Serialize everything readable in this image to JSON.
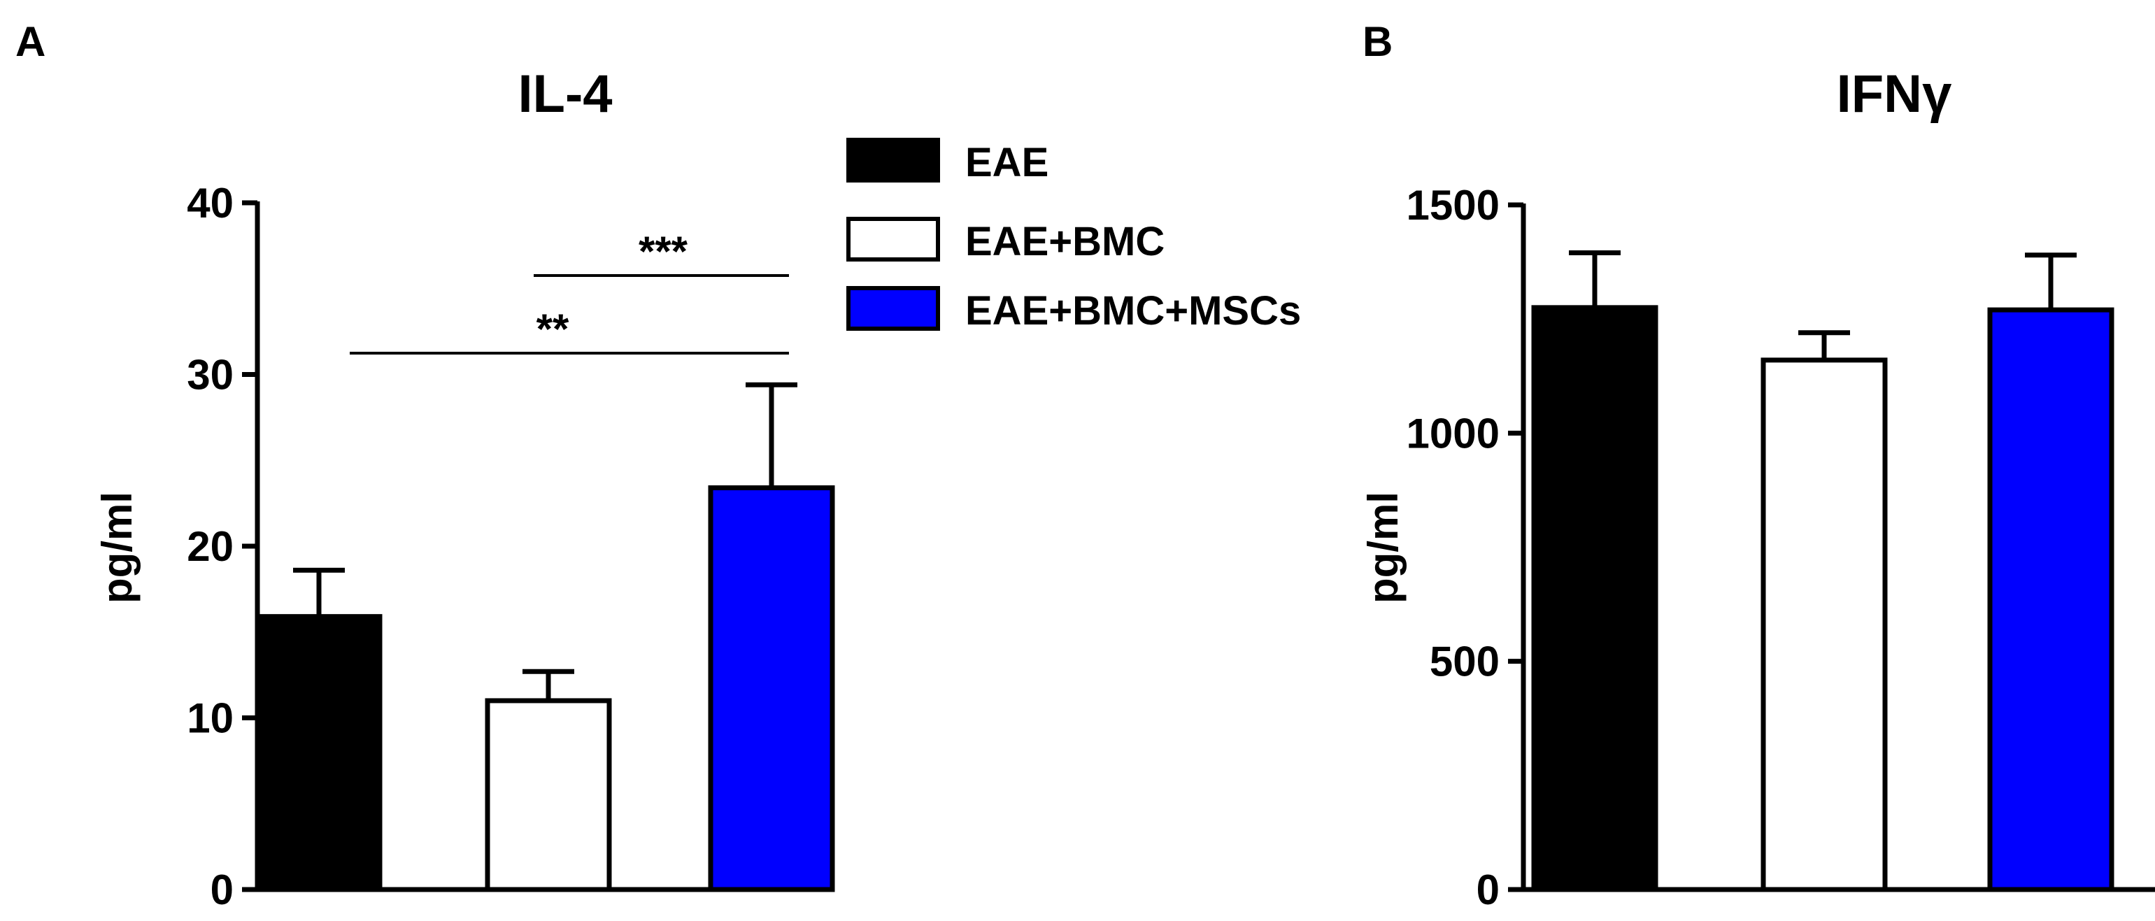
{
  "chart_data": [
    {
      "panel_label": "A",
      "type": "bar",
      "title": "IL-4",
      "ylabel": "pg/ml",
      "ylim": [
        0,
        40
      ],
      "yticks": [
        "0",
        "10",
        "20",
        "30",
        "40"
      ],
      "categories": [
        "EAE",
        "EAE+BMC",
        "EAE+BMC+MSCs"
      ],
      "values": [
        15.9,
        11.0,
        23.4
      ],
      "errors": [
        2.7,
        1.7,
        6.0
      ],
      "colors": [
        "#000000",
        "#ffffff",
        "#0000ff"
      ],
      "significance": [
        {
          "from": 1,
          "to": 2,
          "label": "***"
        },
        {
          "from": 0,
          "to": 2,
          "label": "**"
        }
      ]
    },
    {
      "panel_label": "B",
      "type": "bar",
      "title": "IFNγ",
      "ylabel": "pg/ml",
      "ylim": [
        0,
        1500
      ],
      "yticks": [
        "0",
        "500",
        "1000",
        "1500"
      ],
      "categories": [
        "EAE",
        "EAE+BMC",
        "EAE+BMC+MSCs"
      ],
      "values": [
        1275,
        1160,
        1270
      ],
      "errors": [
        120,
        60,
        120
      ],
      "colors": [
        "#000000",
        "#ffffff",
        "#0000ff"
      ]
    }
  ],
  "legend": {
    "placement": "right of panel A",
    "items": [
      {
        "label": "EAE",
        "color": "#000000"
      },
      {
        "label": "EAE+BMC",
        "color": "#ffffff"
      },
      {
        "label": "EAE+BMC+MSCs",
        "color": "#0000ff"
      }
    ]
  }
}
